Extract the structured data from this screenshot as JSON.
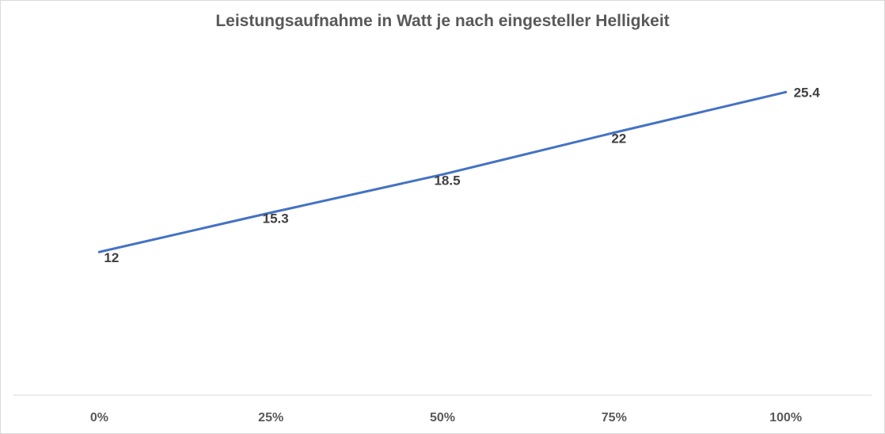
{
  "chart_data": {
    "type": "line",
    "title": "Leistungsaufnahme in Watt je nach eingesteller Helligkeit",
    "categories": [
      "0%",
      "25%",
      "50%",
      "75%",
      "100%"
    ],
    "series": [
      {
        "values": [
          12,
          15.3,
          18.5,
          22,
          25.4
        ]
      }
    ],
    "data_labels": [
      "12",
      "15.3",
      "18.5",
      "22",
      "25.4"
    ],
    "ylim": [
      0,
      30
    ],
    "grid": false,
    "colors": {
      "line": "#4472C4",
      "axis": "#d9d9d9",
      "text": "#595959"
    }
  }
}
